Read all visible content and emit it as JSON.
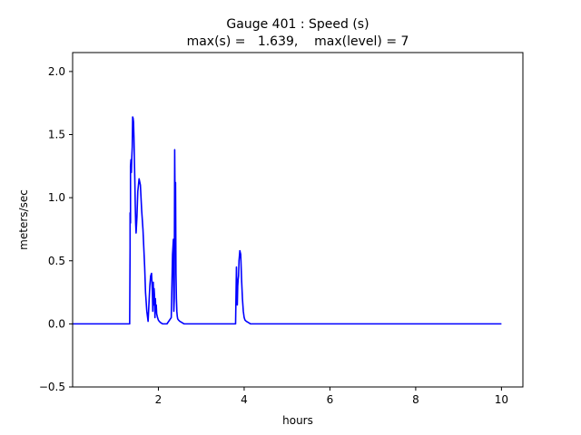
{
  "chart_data": {
    "type": "line",
    "title_line1": "Gauge 401 : Speed (s)",
    "title_line2": "max(s) =   1.639,    max(level) = 7",
    "xlabel": "hours",
    "ylabel": "meters/sec",
    "xlim": [
      0.0,
      10.5
    ],
    "ylim": [
      -0.5,
      2.15
    ],
    "xticks": [
      2,
      4,
      6,
      8,
      10
    ],
    "xtick_labels": [
      "2",
      "4",
      "6",
      "8",
      "10"
    ],
    "yticks": [
      -0.5,
      0.0,
      0.5,
      1.0,
      1.5,
      2.0
    ],
    "ytick_labels": [
      "−0.5",
      "0.0",
      "0.5",
      "1.0",
      "1.5",
      "2.0"
    ],
    "grid": false,
    "line_color": "#0000ff",
    "series": [
      {
        "x": [
          0.0,
          1.3,
          1.33,
          1.34,
          1.34,
          1.35,
          1.35,
          1.36,
          1.37,
          1.38,
          1.39,
          1.4,
          1.41,
          1.42,
          1.43,
          1.44,
          1.45,
          1.46,
          1.47,
          1.48,
          1.5,
          1.52,
          1.55,
          1.58,
          1.61,
          1.64,
          1.66,
          1.68,
          1.7,
          1.73,
          1.76,
          1.8,
          1.82,
          1.84,
          1.86,
          1.87,
          1.88,
          1.89,
          1.9,
          1.91,
          1.92,
          1.93,
          1.94,
          1.95,
          1.96,
          1.98,
          2.0,
          2.02,
          2.05,
          2.1,
          2.2,
          2.3,
          2.33,
          2.35,
          2.36,
          2.37,
          2.38,
          2.39,
          2.4,
          2.41,
          2.42,
          2.43,
          2.44,
          2.45,
          2.47,
          2.5,
          2.55,
          2.6,
          2.7,
          3.8,
          3.82,
          3.84,
          3.85,
          3.86,
          3.87,
          3.88,
          3.9,
          3.92,
          3.94,
          3.96,
          3.98,
          4.0,
          4.02,
          4.05,
          4.1,
          4.15,
          4.2,
          4.3,
          10.0
        ],
        "y": [
          0.0,
          0.0,
          0.0,
          0.6,
          0.88,
          0.8,
          1.25,
          1.3,
          1.2,
          1.32,
          1.4,
          1.64,
          1.63,
          1.6,
          1.48,
          1.3,
          1.15,
          0.95,
          0.8,
          0.72,
          0.85,
          1.05,
          1.15,
          1.1,
          0.9,
          0.75,
          0.6,
          0.45,
          0.25,
          0.1,
          0.02,
          0.3,
          0.38,
          0.4,
          0.25,
          0.1,
          0.33,
          0.15,
          0.28,
          0.22,
          0.05,
          0.2,
          0.1,
          0.15,
          0.08,
          0.05,
          0.03,
          0.02,
          0.01,
          0.0,
          0.0,
          0.05,
          0.55,
          0.67,
          0.1,
          0.2,
          1.38,
          0.9,
          1.12,
          0.4,
          0.2,
          0.1,
          0.06,
          0.04,
          0.03,
          0.02,
          0.01,
          0.0,
          0.0,
          0.0,
          0.45,
          0.15,
          0.3,
          0.35,
          0.38,
          0.5,
          0.58,
          0.55,
          0.35,
          0.2,
          0.1,
          0.05,
          0.03,
          0.02,
          0.01,
          0.0,
          0.0,
          0.0,
          0.0
        ]
      }
    ]
  }
}
